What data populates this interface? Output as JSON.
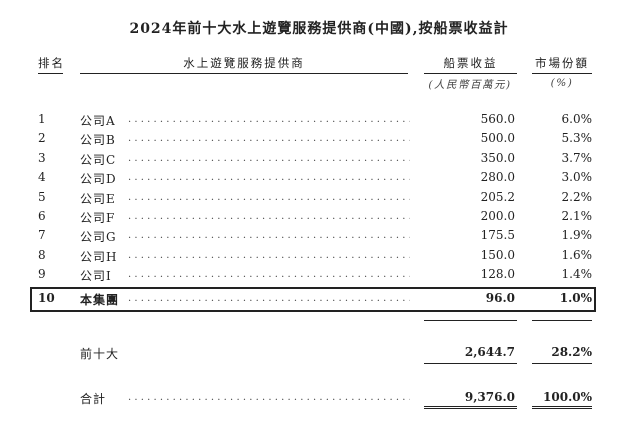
{
  "title": "2024年前十大水上遊覽服務提供商(中國),按船票收益計",
  "headers": {
    "rank": "排名",
    "provider": "水上遊覽服務提供商",
    "revenue": "船票收益",
    "share": "市場份額",
    "revenue_unit": "(人民幣百萬元)",
    "share_unit": "(%)"
  },
  "rows": [
    {
      "rank": "1",
      "name": "公司A",
      "revenue": "560.0",
      "share": "6.0%"
    },
    {
      "rank": "2",
      "name": "公司B",
      "revenue": "500.0",
      "share": "5.3%"
    },
    {
      "rank": "3",
      "name": "公司C",
      "revenue": "350.0",
      "share": "3.7%"
    },
    {
      "rank": "4",
      "name": "公司D",
      "revenue": "280.0",
      "share": "3.0%"
    },
    {
      "rank": "5",
      "name": "公司E",
      "revenue": "205.2",
      "share": "2.2%"
    },
    {
      "rank": "6",
      "name": "公司F",
      "revenue": "200.0",
      "share": "2.1%"
    },
    {
      "rank": "7",
      "name": "公司G",
      "revenue": "175.5",
      "share": "1.9%"
    },
    {
      "rank": "8",
      "name": "公司H",
      "revenue": "150.0",
      "share": "1.6%"
    },
    {
      "rank": "9",
      "name": "公司I",
      "revenue": "128.0",
      "share": "1.4%"
    },
    {
      "rank": "10",
      "name": "本集團",
      "revenue": "96.0",
      "share": "1.0%"
    }
  ],
  "top10": {
    "label": "前十大",
    "revenue": "2,644.7",
    "share": "28.2%"
  },
  "total": {
    "label": "合計",
    "revenue": "9,376.0",
    "share": "100.0%"
  }
}
